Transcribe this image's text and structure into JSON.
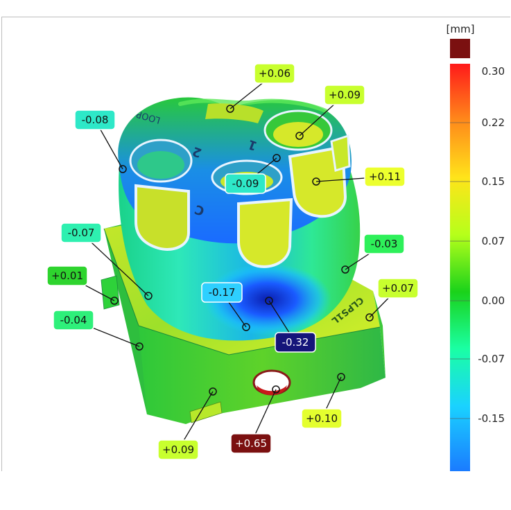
{
  "scale": {
    "unit": "[mm]",
    "tick_labels": [
      "0.30",
      "0.22",
      "0.15",
      "0.07",
      "0.00",
      "-0.07",
      "-0.15"
    ],
    "overflow_color": "#7b1010",
    "gradient_colors": [
      "#ff1a1a",
      "#ff8a1a",
      "#ffe41a",
      "#b6ff1a",
      "#1ad21a",
      "#1affa4",
      "#1ad2ff",
      "#1a7bff"
    ]
  },
  "callouts": [
    {
      "label": "+0.06",
      "bg": "#c8ff2e",
      "fg": "#111111"
    },
    {
      "label": "+0.09",
      "bg": "#c8ff2e",
      "fg": "#111111"
    },
    {
      "label": "-0.08",
      "bg": "#2ee8c8",
      "fg": "#111111"
    },
    {
      "label": "+0.11",
      "bg": "#ecff2e",
      "fg": "#111111"
    },
    {
      "label": "-0.09",
      "bg": "#2ee8c8",
      "fg": "#111111"
    },
    {
      "label": "-0.07",
      "bg": "#2ef0b0",
      "fg": "#111111"
    },
    {
      "label": "-0.03",
      "bg": "#2ef05a",
      "fg": "#111111"
    },
    {
      "label": "+0.01",
      "bg": "#2ed42e",
      "fg": "#111111"
    },
    {
      "label": "+0.07",
      "bg": "#c8ff2e",
      "fg": "#111111"
    },
    {
      "label": "-0.17",
      "bg": "#2ed0ff",
      "fg": "#111111"
    },
    {
      "label": "-0.04",
      "bg": "#2ef07a",
      "fg": "#111111"
    },
    {
      "label": "-0.32",
      "bg": "#15157a",
      "fg": "#ffffff"
    },
    {
      "label": "+0.10",
      "bg": "#e4ff2e",
      "fg": "#111111"
    },
    {
      "label": "+0.09",
      "bg": "#c8ff2e",
      "fg": "#111111"
    },
    {
      "label": "+0.65",
      "bg": "#7b1010",
      "fg": "#ffffff"
    }
  ],
  "part": {
    "engravings": [
      "LOOP",
      "1",
      "2",
      "C",
      "CLPS1L"
    ]
  }
}
